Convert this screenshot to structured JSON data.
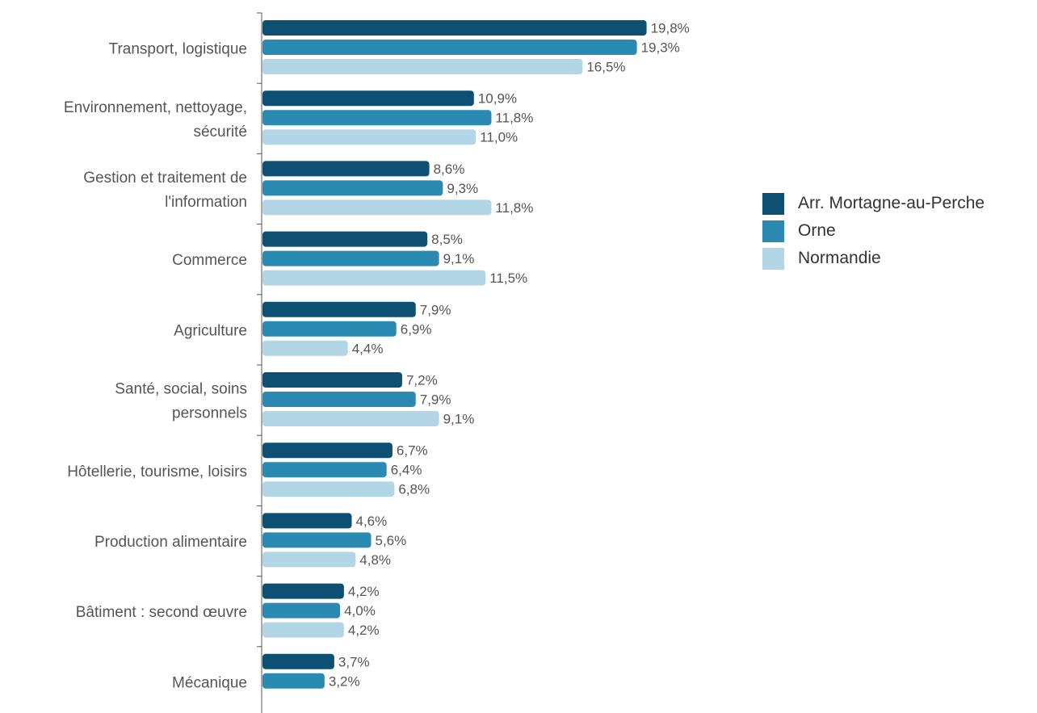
{
  "chart_data": {
    "type": "bar",
    "orientation": "horizontal",
    "value_unit": "%",
    "decimal_separator": ",",
    "categories": [
      [
        "Transport, logistique"
      ],
      [
        "Environnement, nettoyage,",
        "sécurité"
      ],
      [
        "Gestion et traitement de",
        "l'information"
      ],
      [
        "Commerce"
      ],
      [
        "Agriculture"
      ],
      [
        "Santé, social, soins",
        "personnels"
      ],
      [
        "Hôtellerie, tourisme, loisirs"
      ],
      [
        "Production alimentaire"
      ],
      [
        "Bâtiment : second œuvre"
      ],
      [
        "Mécanique"
      ]
    ],
    "series": [
      {
        "name": "Arr. Mortagne-au-Perche",
        "color": "#0d5073",
        "values": [
          19.8,
          10.9,
          8.6,
          8.5,
          7.9,
          7.2,
          6.7,
          4.6,
          4.2,
          3.7
        ]
      },
      {
        "name": "Orne",
        "color": "#2a8ab2",
        "values": [
          19.3,
          11.8,
          9.3,
          9.1,
          6.9,
          7.9,
          6.4,
          5.6,
          4.0,
          3.2
        ]
      },
      {
        "name": "Normandie",
        "color": "#b3d6e6",
        "values": [
          16.5,
          11.0,
          11.8,
          11.5,
          4.4,
          9.1,
          6.8,
          4.8,
          4.2,
          null
        ]
      }
    ],
    "legend_position": "right",
    "grid": false,
    "xlim": [
      0,
      20
    ]
  }
}
